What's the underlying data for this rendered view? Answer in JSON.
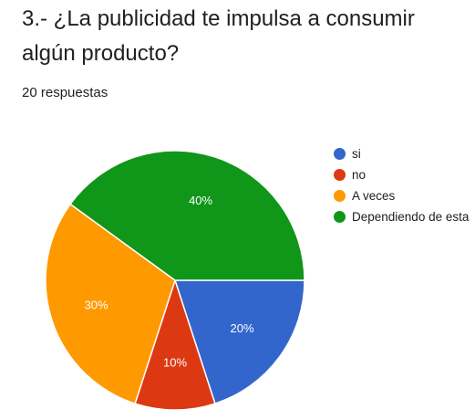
{
  "question": {
    "title": "3.- ¿La publicidad te impulsa a consumir algún producto?",
    "responses": "20 respuestas"
  },
  "chart_data": {
    "type": "pie",
    "categories": [
      "si",
      "no",
      "A veces",
      "Dependiendo de esta"
    ],
    "values": [
      20,
      10,
      30,
      40
    ],
    "labels": [
      "20%",
      "10%",
      "30%",
      "40%"
    ],
    "colors": [
      "#3366cc",
      "#dc3912",
      "#ff9900",
      "#109618"
    ],
    "legend_position": "right"
  }
}
